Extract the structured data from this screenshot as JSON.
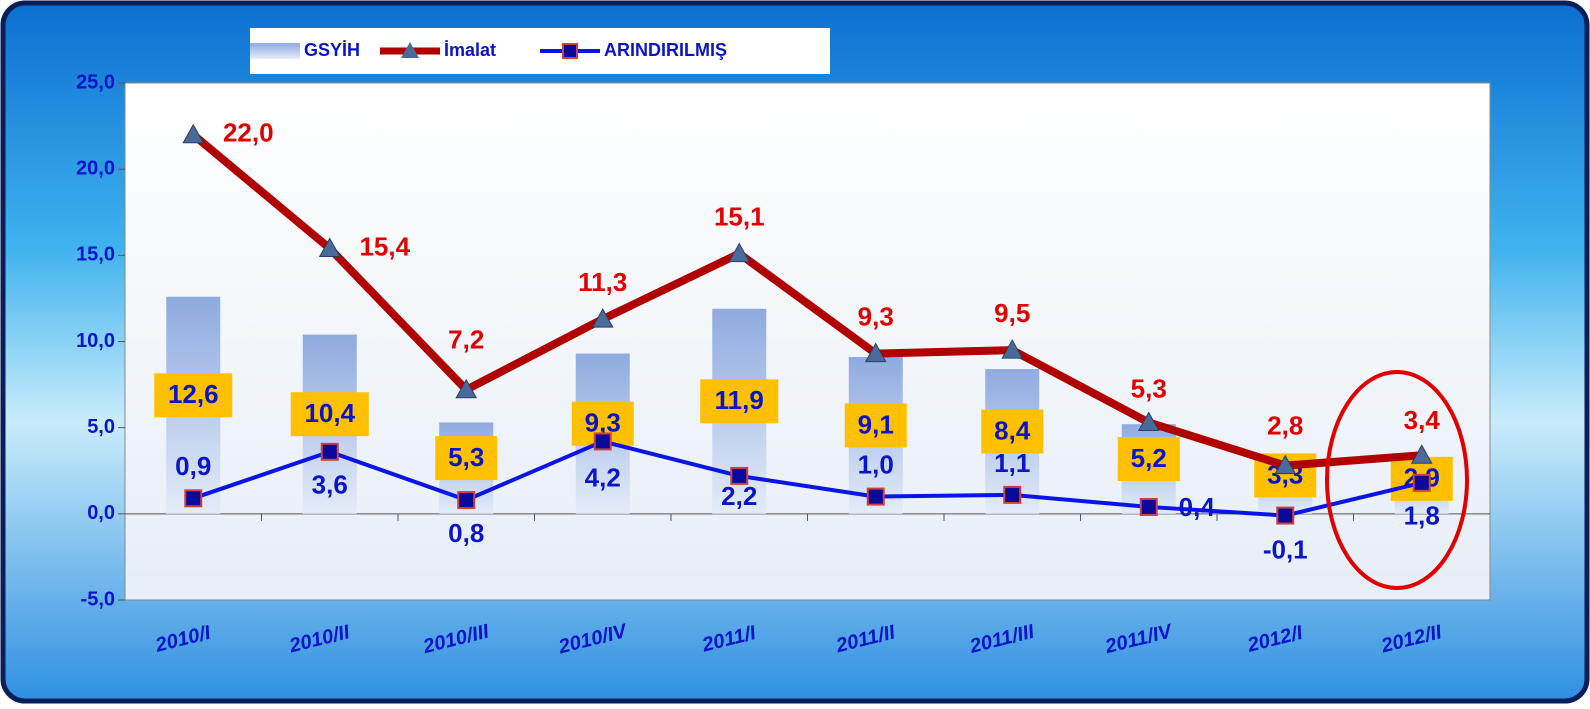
{
  "chart_data": {
    "type": "bar_line",
    "categories": [
      "2010/I",
      "2010/II",
      "2010/III",
      "2010/IV",
      "2011/I",
      "2011/II",
      "2011/III",
      "2011/IV",
      "2012/I",
      "2012/II"
    ],
    "series": [
      {
        "name": "GSYİH",
        "type": "bar",
        "color": "#9fb8e3",
        "values": [
          12.6,
          10.4,
          5.3,
          9.3,
          11.9,
          9.1,
          8.4,
          5.2,
          3.3,
          2.9
        ],
        "value_labels": [
          "12,6",
          "10,4",
          "5,3",
          "9,3",
          "11,9",
          "9,1",
          "8,4",
          "5,2",
          "3,3",
          "2,9"
        ]
      },
      {
        "name": "İmalat",
        "type": "line",
        "color": "#b00000",
        "values": [
          22.0,
          15.4,
          7.2,
          11.3,
          15.1,
          9.3,
          9.5,
          5.3,
          2.8,
          3.4
        ],
        "value_labels": [
          "22,0",
          "15,4",
          "7,2",
          "11,3",
          "15,1",
          "9,3",
          "9,5",
          "5,3",
          "2,8",
          "3,4"
        ]
      },
      {
        "name": "ARINDIRILMIŞ",
        "type": "line",
        "color": "#0a14e6",
        "values": [
          0.9,
          3.6,
          0.8,
          4.2,
          2.2,
          1.0,
          1.1,
          0.4,
          -0.1,
          1.8
        ],
        "value_labels": [
          "0,9",
          "3,6",
          "0,8",
          "4,2",
          "2,2",
          "1,0",
          "1,1",
          "0,4",
          "-0,1",
          "1,8"
        ]
      }
    ],
    "ylim": [
      -5,
      25
    ],
    "yticks": [
      {
        "value": -5,
        "label": "-5,0"
      },
      {
        "value": 0,
        "label": "0,0"
      },
      {
        "value": 5,
        "label": "5,0"
      },
      {
        "value": 10,
        "label": "10,0"
      },
      {
        "value": 15,
        "label": "15,0"
      },
      {
        "value": 20,
        "label": "20,0"
      },
      {
        "value": 25,
        "label": "25,0"
      }
    ],
    "legend": "top"
  }
}
